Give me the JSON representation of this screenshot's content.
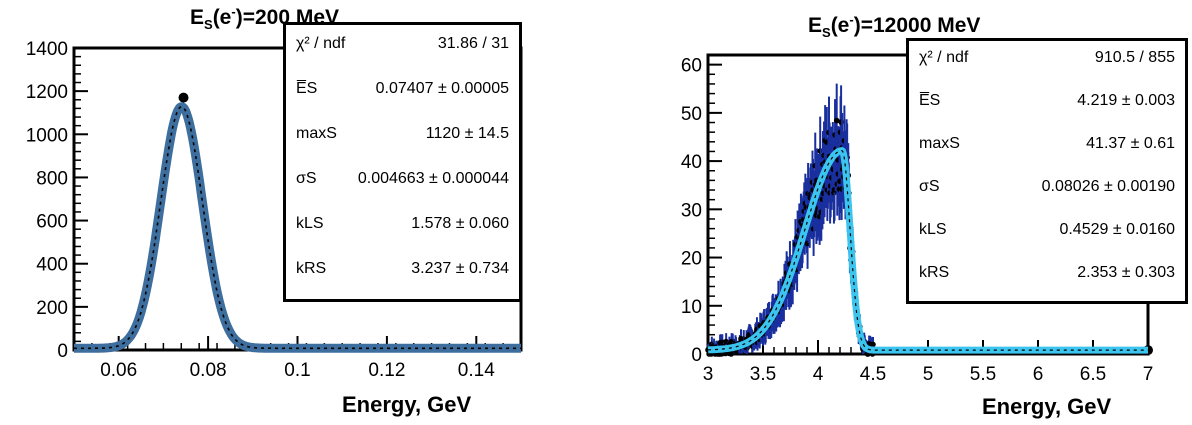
{
  "chart_data": [
    {
      "type": "scatter",
      "title_main": "E",
      "title_sub": "S",
      "title_paren": "(e",
      "title_sup": "-",
      "title_rest": ")=200 MeV",
      "xlabel": "Energy, GeV",
      "ylabel": "",
      "xlim": [
        0.05,
        0.15
      ],
      "ylim": [
        0,
        1400
      ],
      "xticks": [
        "0.06",
        "0.08",
        "0.1",
        "0.12",
        "0.14"
      ],
      "yticks": [
        "0",
        "200",
        "400",
        "600",
        "800",
        "1000",
        "1200",
        "1400"
      ],
      "fit_color": "#3d6e9e",
      "points_color": "#000000",
      "fit": {
        "mean": 0.07407,
        "max": 1120,
        "sigma": 0.004663,
        "kL": 1.578,
        "kR": 3.237,
        "base": 8
      },
      "peak_point": {
        "x": 0.0745,
        "y": 1170
      },
      "stats": [
        {
          "name": "χ² / ndf",
          "value": "31.86 / 31"
        },
        {
          "name": "E̅S",
          "value": "0.07407 ± 0.00005"
        },
        {
          "name": "maxS",
          "value": "1120 ± 14.5"
        },
        {
          "name": "σS",
          "value": "0.004663 ± 0.000044"
        },
        {
          "name": "kLS",
          "value": "1.578 ± 0.060"
        },
        {
          "name": "kRS",
          "value": "3.237 ± 0.734"
        }
      ]
    },
    {
      "type": "scatter",
      "title_main": "E",
      "title_sub": "S",
      "title_paren": "(e",
      "title_sup": "-",
      "title_rest": ")=12000 MeV",
      "xlabel": "Energy, GeV",
      "ylabel": "",
      "xlim": [
        3,
        7
      ],
      "ylim": [
        0,
        62
      ],
      "xticks": [
        "3",
        "3.5",
        "4",
        "4.5",
        "5",
        "5.5",
        "6",
        "6.5",
        "7"
      ],
      "yticks": [
        "0",
        "10",
        "20",
        "30",
        "40",
        "50",
        "60"
      ],
      "fit_color": "#3bc4ee",
      "error_color": "#1a2f9e",
      "points_color": "#000000",
      "fit": {
        "mean": 4.219,
        "max": 41.37,
        "sigma": 0.08026,
        "kL": 0.4529,
        "kR": 2.353,
        "base": 0.8
      },
      "stats": [
        {
          "name": "χ² / ndf",
          "value": "910.5 / 855"
        },
        {
          "name": "E̅S",
          "value": "4.219 ± 0.003"
        },
        {
          "name": "maxS",
          "value": "41.37 ± 0.61"
        },
        {
          "name": "σS",
          "value": "0.08026 ± 0.00190"
        },
        {
          "name": "kLS",
          "value": "0.4529 ± 0.0160"
        },
        {
          "name": "kRS",
          "value": "2.353 ± 0.303"
        }
      ]
    }
  ]
}
